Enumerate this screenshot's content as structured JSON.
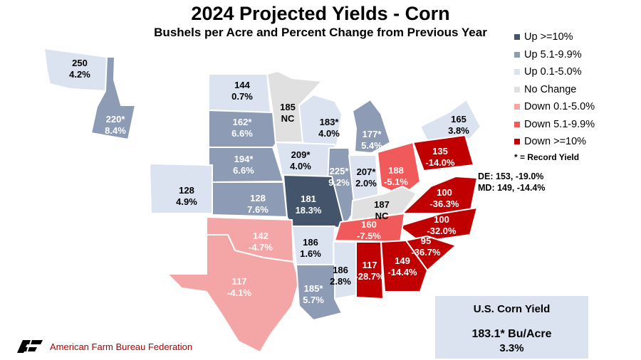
{
  "title": "2024 Projected Yields - Corn",
  "subtitle": "Bushels per Acre and Percent Change from Previous Year",
  "legend": [
    {
      "label": "Up >=10%",
      "color": "#44546a"
    },
    {
      "label": "Up 5.1-9.9%",
      "color": "#8e9bb4"
    },
    {
      "label": "Up 0.1-5.0%",
      "color": "#dce3f0"
    },
    {
      "label": "No Change",
      "color": "#e0e0e0"
    },
    {
      "label": "Down 0.1-5.0%",
      "color": "#f4a6a6"
    },
    {
      "label": "Down 5.1-9.9%",
      "color": "#f15a5a"
    },
    {
      "label": "Down >=10%",
      "color": "#c00000"
    }
  ],
  "legend_note": "* = Record Yield",
  "states": [
    {
      "id": "WA",
      "yield": "250",
      "change": "4.2%",
      "category": 2
    },
    {
      "id": "ID",
      "yield": "220*",
      "change": "8.4%",
      "category": 1
    },
    {
      "id": "ND",
      "yield": "144",
      "change": "0.7%",
      "category": 2
    },
    {
      "id": "MN",
      "yield": "185",
      "change": "NC",
      "category": 3
    },
    {
      "id": "SD",
      "yield": "162*",
      "change": "6.6%",
      "category": 1
    },
    {
      "id": "WI",
      "yield": "183*",
      "change": "4.0%",
      "category": 2
    },
    {
      "id": "MI",
      "yield": "177*",
      "change": "5.4%",
      "category": 1
    },
    {
      "id": "NY",
      "yield": "165",
      "change": "3.8%",
      "category": 2
    },
    {
      "id": "NE",
      "yield": "194*",
      "change": "6.6%",
      "category": 1
    },
    {
      "id": "IA",
      "yield": "209*",
      "change": "4.0%",
      "category": 2
    },
    {
      "id": "IL",
      "yield": "225*",
      "change": "9.2%",
      "category": 1
    },
    {
      "id": "IN",
      "yield": "207*",
      "change": "2.0%",
      "category": 2
    },
    {
      "id": "OH",
      "yield": "188",
      "change": "-5.1%",
      "category": 5
    },
    {
      "id": "PA",
      "yield": "135",
      "change": "-14.0%",
      "category": 6
    },
    {
      "id": "CO",
      "yield": "128",
      "change": "4.9%",
      "category": 2
    },
    {
      "id": "KS",
      "yield": "128",
      "change": "7.6%",
      "category": 1
    },
    {
      "id": "MO",
      "yield": "181",
      "change": "18.3%",
      "category": 0
    },
    {
      "id": "KY",
      "yield": "187",
      "change": "NC",
      "category": 3
    },
    {
      "id": "VA",
      "yield": "100",
      "change": "-36.3%",
      "category": 6
    },
    {
      "id": "NC",
      "yield": "100",
      "change": "-32.0%",
      "category": 6
    },
    {
      "id": "TN",
      "yield": "160",
      "change": "-7.5%",
      "category": 5
    },
    {
      "id": "OK",
      "yield": "142",
      "change": "-4.7%",
      "category": 4
    },
    {
      "id": "AR",
      "yield": "186",
      "change": "1.6%",
      "category": 2
    },
    {
      "id": "SC",
      "yield": "95",
      "change": "-36.7%",
      "category": 6
    },
    {
      "id": "MS",
      "yield": "186",
      "change": "2.8%",
      "category": 2
    },
    {
      "id": "AL",
      "yield": "117",
      "change": "-28.7%",
      "category": 6
    },
    {
      "id": "GA",
      "yield": "149",
      "change": "-14.4%",
      "category": 6
    },
    {
      "id": "TX",
      "yield": "117",
      "change": "-4.1%",
      "category": 4
    },
    {
      "id": "LA",
      "yield": "185*",
      "change": "5.7%",
      "category": 1
    }
  ],
  "de_md": [
    "DE: 153, -19.0%",
    "MD: 149, -14.4%"
  ],
  "us_summary": {
    "title": "U.S. Corn Yield",
    "value": "183.1* Bu/Acre",
    "change": "3.3%"
  },
  "logo_text": "American Farm Bureau Federation"
}
